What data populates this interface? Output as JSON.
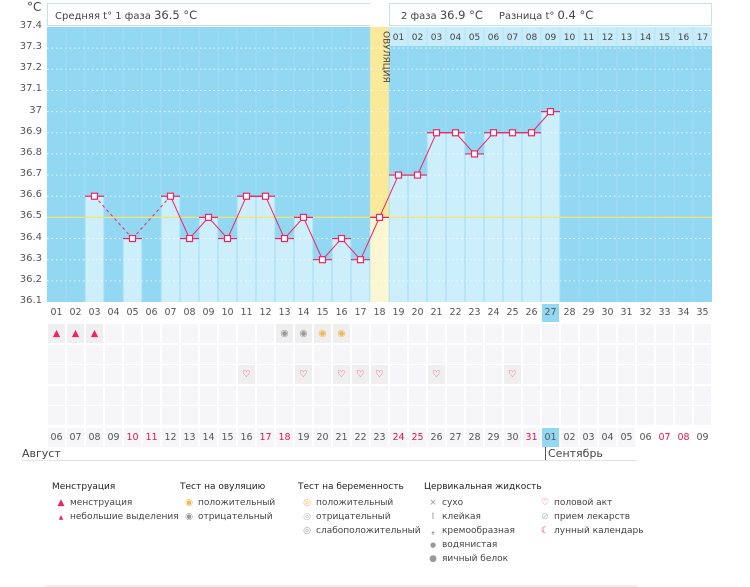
{
  "header": {
    "unit": "°C",
    "phase1_label": "Средняя t° 1 фаза",
    "phase1_value": "36.5 °C",
    "phase2_label": "2 фаза",
    "phase2_value": "36.9 °C",
    "diff_label": "Разница t°",
    "diff_value": "0.4 °C",
    "ovulation_label": "ОВУЛЯЦИЯ"
  },
  "chart_data": {
    "type": "line",
    "ylim": [
      36.1,
      37.4
    ],
    "yticks": [
      "37.4",
      "37.3",
      "37.2",
      "37.1",
      "37",
      "36.9",
      "36.8",
      "36.7",
      "36.6",
      "36.5",
      "36.4",
      "36.3",
      "36.2",
      "36.1"
    ],
    "coverline": 36.5,
    "ovulation_day": 18,
    "today_day": 27,
    "days": [
      "01",
      "02",
      "03",
      "04",
      "05",
      "06",
      "07",
      "08",
      "09",
      "10",
      "11",
      "12",
      "13",
      "14",
      "15",
      "16",
      "17",
      "18",
      "19",
      "20",
      "21",
      "22",
      "23",
      "24",
      "25",
      "26",
      "27",
      "28",
      "29",
      "30",
      "31",
      "32",
      "33",
      "34",
      "35"
    ],
    "phase2_days": [
      "01",
      "02",
      "03",
      "04",
      "05",
      "06",
      "07",
      "08",
      "09",
      "10",
      "11",
      "12",
      "13",
      "14",
      "15",
      "16",
      "17"
    ],
    "temps": [
      null,
      null,
      36.6,
      null,
      36.4,
      null,
      36.6,
      36.4,
      36.5,
      36.4,
      36.6,
      36.6,
      36.4,
      36.5,
      36.3,
      36.4,
      36.3,
      36.5,
      36.7,
      36.7,
      36.9,
      36.9,
      36.8,
      36.9,
      36.9,
      36.9,
      37.0,
      null,
      null,
      null,
      null,
      null,
      null,
      null,
      null
    ],
    "dates": [
      "06",
      "07",
      "08",
      "09",
      "10",
      "11",
      "12",
      "13",
      "14",
      "15",
      "16",
      "17",
      "18",
      "19",
      "20",
      "21",
      "22",
      "23",
      "24",
      "25",
      "26",
      "27",
      "28",
      "29",
      "30",
      "31",
      "01",
      "02",
      "03",
      "04",
      "05",
      "06",
      "07",
      "08",
      "09"
    ],
    "weekend_indices": [
      4,
      5,
      11,
      12,
      18,
      19,
      25,
      32,
      33
    ],
    "months": [
      "Август",
      "Сентябрь"
    ]
  },
  "markers": {
    "menstruation_days": [
      1,
      2,
      3
    ],
    "ovulation_test_negative_days": [
      13,
      14
    ],
    "ovulation_test_positive_days": [
      15,
      16
    ],
    "intercourse_days": [
      11,
      14,
      16,
      17,
      18,
      21,
      25
    ]
  },
  "legend": {
    "menstruation": {
      "title": "Менструация",
      "items": [
        "менструация",
        "небольшие выделения"
      ]
    },
    "ovtest": {
      "title": "Тест на овуляцию",
      "items": [
        "положительный",
        "отрицательный"
      ]
    },
    "pregtest": {
      "title": "Тест на беременность",
      "items": [
        "положительный",
        "отрицательный",
        "слабоположительный"
      ]
    },
    "cervical": {
      "title": "Цервикальная жидкость",
      "items": [
        "сухо",
        "клейкая",
        "кремообразная",
        "водянистая",
        "яичный белок"
      ]
    },
    "other": {
      "items": [
        "половой акт",
        "прием лекарств",
        "лунный календарь"
      ]
    }
  },
  "colors": {
    "bg": "#93d8f2",
    "bar": "#cdeefb",
    "line": "#f0245f",
    "ovulation": "#fbe99a",
    "coverline": "#f5e36a"
  }
}
